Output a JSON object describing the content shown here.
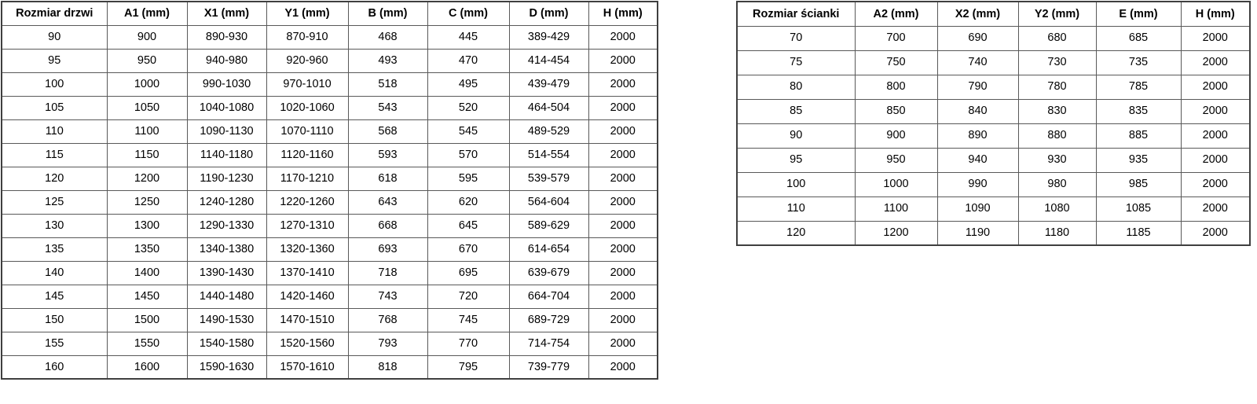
{
  "doors_table": {
    "name": "door-sizes-table",
    "headers": [
      "Rozmiar drzwi",
      "A1 (mm)",
      "X1 (mm)",
      "Y1 (mm)",
      "B (mm)",
      "C (mm)",
      "D (mm)",
      "H (mm)"
    ],
    "rows": [
      [
        "90",
        "900",
        "890-930",
        "870-910",
        "468",
        "445",
        "389-429",
        "2000"
      ],
      [
        "95",
        "950",
        "940-980",
        "920-960",
        "493",
        "470",
        "414-454",
        "2000"
      ],
      [
        "100",
        "1000",
        "990-1030",
        "970-1010",
        "518",
        "495",
        "439-479",
        "2000"
      ],
      [
        "105",
        "1050",
        "1040-1080",
        "1020-1060",
        "543",
        "520",
        "464-504",
        "2000"
      ],
      [
        "110",
        "1100",
        "1090-1130",
        "1070-1110",
        "568",
        "545",
        "489-529",
        "2000"
      ],
      [
        "115",
        "1150",
        "1140-1180",
        "1120-1160",
        "593",
        "570",
        "514-554",
        "2000"
      ],
      [
        "120",
        "1200",
        "1190-1230",
        "1170-1210",
        "618",
        "595",
        "539-579",
        "2000"
      ],
      [
        "125",
        "1250",
        "1240-1280",
        "1220-1260",
        "643",
        "620",
        "564-604",
        "2000"
      ],
      [
        "130",
        "1300",
        "1290-1330",
        "1270-1310",
        "668",
        "645",
        "589-629",
        "2000"
      ],
      [
        "135",
        "1350",
        "1340-1380",
        "1320-1360",
        "693",
        "670",
        "614-654",
        "2000"
      ],
      [
        "140",
        "1400",
        "1390-1430",
        "1370-1410",
        "718",
        "695",
        "639-679",
        "2000"
      ],
      [
        "145",
        "1450",
        "1440-1480",
        "1420-1460",
        "743",
        "720",
        "664-704",
        "2000"
      ],
      [
        "150",
        "1500",
        "1490-1530",
        "1470-1510",
        "768",
        "745",
        "689-729",
        "2000"
      ],
      [
        "155",
        "1550",
        "1540-1580",
        "1520-1560",
        "793",
        "770",
        "714-754",
        "2000"
      ],
      [
        "160",
        "1600",
        "1590-1630",
        "1570-1610",
        "818",
        "795",
        "739-779",
        "2000"
      ]
    ]
  },
  "walls_table": {
    "name": "wall-sizes-table",
    "headers": [
      "Rozmiar ścianki",
      "A2 (mm)",
      "X2 (mm)",
      "Y2 (mm)",
      "E (mm)",
      "H (mm)"
    ],
    "rows": [
      [
        "70",
        "700",
        "690",
        "680",
        "685",
        "2000"
      ],
      [
        "75",
        "750",
        "740",
        "730",
        "735",
        "2000"
      ],
      [
        "80",
        "800",
        "790",
        "780",
        "785",
        "2000"
      ],
      [
        "85",
        "850",
        "840",
        "830",
        "835",
        "2000"
      ],
      [
        "90",
        "900",
        "890",
        "880",
        "885",
        "2000"
      ],
      [
        "95",
        "950",
        "940",
        "930",
        "935",
        "2000"
      ],
      [
        "100",
        "1000",
        "990",
        "980",
        "985",
        "2000"
      ],
      [
        "110",
        "1100",
        "1090",
        "1080",
        "1085",
        "2000"
      ],
      [
        "120",
        "1200",
        "1190",
        "1180",
        "1185",
        "2000"
      ]
    ]
  },
  "colors": {
    "outer_border": "#3f3f3f",
    "inner_border": "#595959",
    "text": "#000000",
    "background": "#ffffff"
  }
}
